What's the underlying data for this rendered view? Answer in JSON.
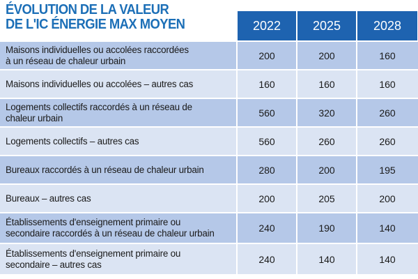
{
  "title": {
    "line1": "ÉVOLUTION DE LA VALEUR",
    "line2": "DE L'IC ÉNERGIE MAX MOYEN"
  },
  "columns": [
    "2022",
    "2025",
    "2028"
  ],
  "rows": [
    {
      "label_lines": [
        "Maisons individuelles ou accolées raccordées",
        "à un réseau de chaleur urbain"
      ],
      "values": [
        "200",
        "200",
        "160"
      ]
    },
    {
      "label_lines": [
        "Maisons individuelles ou accolées – autres cas"
      ],
      "values": [
        "160",
        "160",
        "160"
      ]
    },
    {
      "label_lines": [
        "Logements collectifs raccordés à un réseau de",
        "chaleur urbain"
      ],
      "values": [
        "560",
        "320",
        "260"
      ]
    },
    {
      "label_lines": [
        "Logements collectifs – autres cas"
      ],
      "values": [
        "560",
        "260",
        "260"
      ]
    },
    {
      "label_lines": [
        "Bureaux raccordés à un réseau de chaleur urbain"
      ],
      "values": [
        "280",
        "200",
        "195"
      ]
    },
    {
      "label_lines": [
        "Bureaux – autres cas"
      ],
      "values": [
        "200",
        "205",
        "200"
      ]
    },
    {
      "label_lines": [
        "Établissements d'enseignement primaire ou",
        "secondaire raccordés à un réseau de chaleur urbain"
      ],
      "values": [
        "240",
        "190",
        "140"
      ]
    },
    {
      "label_lines": [
        "Établissements d'enseignement primaire ou",
        "secondaire – autres cas"
      ],
      "values": [
        "240",
        "140",
        "140"
      ]
    }
  ],
  "colors": {
    "title": "#1c6fb7",
    "header_bg": "#1e63b0",
    "row_dark": "#b5c8e8",
    "row_light": "#dbe4f3"
  }
}
